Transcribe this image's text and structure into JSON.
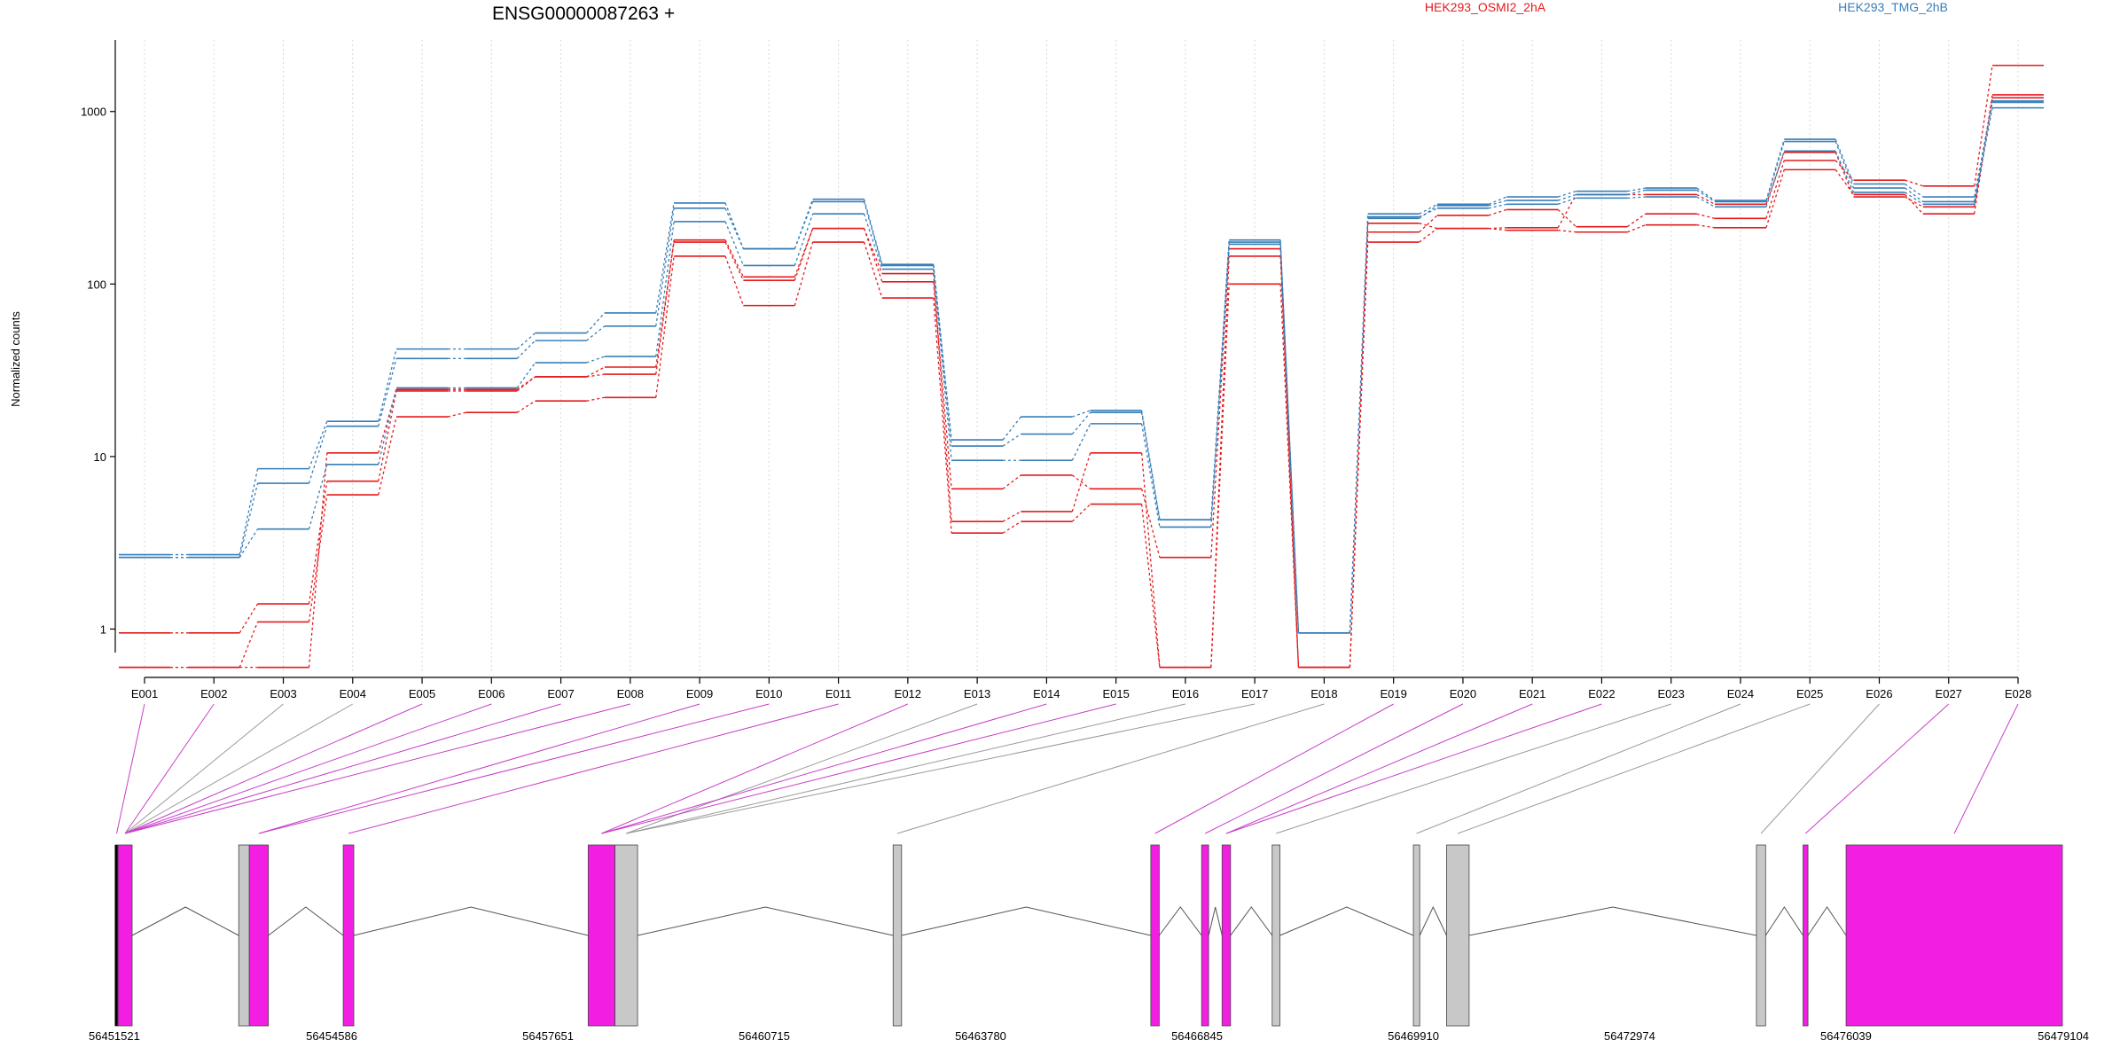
{
  "chart_data": {
    "type": "line",
    "title": "ENSG00000087263 +",
    "ylabel": "Normalized counts",
    "xlabel": "",
    "y_scale": "log",
    "ylim": [
      0.55,
      2600
    ],
    "yticks": [
      1,
      10,
      100,
      1000
    ],
    "ytick_labels": [
      "1",
      "10",
      "100",
      "1000"
    ],
    "grid": "vertical dotted",
    "legend_placement": "top",
    "categories": [
      "E001",
      "E002",
      "E003",
      "E004",
      "E005",
      "E006",
      "E007",
      "E008",
      "E009",
      "E010",
      "E011",
      "E012",
      "E013",
      "E014",
      "E015",
      "E016",
      "E017",
      "E018",
      "E019",
      "E020",
      "E021",
      "E022",
      "E023",
      "E024",
      "E025",
      "E026",
      "E027",
      "E028"
    ],
    "groups": [
      {
        "name": "HEK293_OSMI2_2hA",
        "color": "#E41A1C"
      },
      {
        "name": "HEK293_TMG_2hB",
        "color": "#377EB8"
      }
    ],
    "series": [
      {
        "group": 0,
        "values": [
          0.95,
          0.95,
          1.4,
          7.2,
          24,
          24,
          29,
          30,
          180,
          110,
          210,
          115,
          4.2,
          4.8,
          10.5,
          0.6,
          145,
          0.6,
          200,
          250,
          270,
          215,
          255,
          240,
          520,
          400,
          370,
          1850
        ]
      },
      {
        "group": 0,
        "values": [
          0.6,
          0.6,
          1.1,
          6,
          17,
          18,
          21,
          22,
          145,
          75,
          175,
          83,
          3.6,
          4.2,
          5.3,
          0.6,
          100,
          0.6,
          175,
          210,
          205,
          200,
          220,
          212,
          460,
          330,
          255,
          1250
        ]
      },
      {
        "group": 0,
        "values": [
          0.6,
          0.6,
          0.6,
          10.5,
          24.5,
          24.5,
          29,
          33,
          175,
          105,
          210,
          103,
          6.5,
          7.8,
          6.5,
          2.6,
          160,
          0.6,
          225,
          210,
          212,
          330,
          330,
          290,
          580,
          320,
          280,
          1200
        ]
      },
      {
        "group": 1,
        "values": [
          2.7,
          2.7,
          8.5,
          16,
          42,
          42,
          52,
          68,
          295,
          160,
          310,
          130,
          12.5,
          17,
          18.5,
          4.3,
          180,
          0.95,
          255,
          290,
          320,
          345,
          360,
          305,
          690,
          380,
          320,
          1150
        ]
      },
      {
        "group": 1,
        "values": [
          2.6,
          2.6,
          7,
          15,
          37,
          37,
          47,
          57,
          275,
          160,
          300,
          128,
          11.5,
          13.5,
          18,
          4.3,
          175,
          0.95,
          240,
          285,
          305,
          330,
          350,
          300,
          670,
          360,
          300,
          1130
        ]
      },
      {
        "group": 1,
        "values": [
          2.6,
          2.6,
          3.8,
          9,
          25,
          25,
          35,
          38,
          230,
          128,
          255,
          122,
          9.5,
          9.5,
          15.5,
          3.9,
          170,
          0.95,
          245,
          275,
          290,
          315,
          320,
          280,
          590,
          340,
          290,
          1050
        ]
      }
    ],
    "gene_model": {
      "coordinates": [
        "56451521",
        "56454586",
        "56457651",
        "56460715",
        "56463780",
        "56466845",
        "56469910",
        "56472974",
        "56476039",
        "56479104"
      ],
      "range": [
        56451521,
        56479104
      ],
      "colors": {
        "exon": "#F21FE3",
        "other": "#C8C8C8"
      },
      "exons": [
        {
          "start": 56451521,
          "end": 56451560,
          "type": "exon"
        },
        {
          "start": 56451560,
          "end": 56451760,
          "type": "exon"
        },
        {
          "start": 56453270,
          "end": 56453420,
          "type": "other"
        },
        {
          "start": 56453420,
          "end": 56453690,
          "type": "exon"
        },
        {
          "start": 56454750,
          "end": 56454900,
          "type": "exon"
        },
        {
          "start": 56458220,
          "end": 56458600,
          "type": "exon"
        },
        {
          "start": 56458600,
          "end": 56458920,
          "type": "other"
        },
        {
          "start": 56462540,
          "end": 56462660,
          "type": "other"
        },
        {
          "start": 56466190,
          "end": 56466310,
          "type": "exon"
        },
        {
          "start": 56466910,
          "end": 56467010,
          "type": "exon"
        },
        {
          "start": 56467200,
          "end": 56467320,
          "type": "exon"
        },
        {
          "start": 56467910,
          "end": 56468020,
          "type": "other"
        },
        {
          "start": 56469910,
          "end": 56470000,
          "type": "other"
        },
        {
          "start": 56470380,
          "end": 56470700,
          "type": "other"
        },
        {
          "start": 56474770,
          "end": 56474900,
          "type": "other"
        },
        {
          "start": 56475430,
          "end": 56475500,
          "type": "exon"
        },
        {
          "start": 56476040,
          "end": 56479104,
          "type": "exon"
        }
      ],
      "bin_links": [
        {
          "bin": "E001",
          "exon": 0,
          "type": "exon"
        },
        {
          "bin": "E002",
          "exon": 1,
          "type": "exon"
        },
        {
          "bin": "E003",
          "exon": 1,
          "type": "other"
        },
        {
          "bin": "E004",
          "exon": 1,
          "type": "other"
        },
        {
          "bin": "E005",
          "exon": 1,
          "type": "exon"
        },
        {
          "bin": "E006",
          "exon": 1,
          "type": "exon"
        },
        {
          "bin": "E007",
          "exon": 1,
          "type": "exon"
        },
        {
          "bin": "E008",
          "exon": 1,
          "type": "exon"
        },
        {
          "bin": "E009",
          "exon": 3,
          "type": "exon"
        },
        {
          "bin": "E010",
          "exon": 3,
          "type": "exon"
        },
        {
          "bin": "E011",
          "exon": 4,
          "type": "exon"
        },
        {
          "bin": "E012",
          "exon": 5,
          "type": "exon"
        },
        {
          "bin": "E013",
          "exon": 6,
          "type": "other"
        },
        {
          "bin": "E014",
          "exon": 5,
          "type": "exon"
        },
        {
          "bin": "E015",
          "exon": 5,
          "type": "exon"
        },
        {
          "bin": "E016",
          "exon": 6,
          "type": "other"
        },
        {
          "bin": "E017",
          "exon": 6,
          "type": "other"
        },
        {
          "bin": "E018",
          "exon": 7,
          "type": "other"
        },
        {
          "bin": "E019",
          "exon": 8,
          "type": "exon"
        },
        {
          "bin": "E020",
          "exon": 9,
          "type": "exon"
        },
        {
          "bin": "E021",
          "exon": 10,
          "type": "exon"
        },
        {
          "bin": "E022",
          "exon": 10,
          "type": "exon"
        },
        {
          "bin": "E023",
          "exon": 11,
          "type": "other"
        },
        {
          "bin": "E024",
          "exon": 12,
          "type": "other"
        },
        {
          "bin": "E025",
          "exon": 13,
          "type": "other"
        },
        {
          "bin": "E026",
          "exon": 14,
          "type": "other"
        },
        {
          "bin": "E027",
          "exon": 15,
          "type": "exon"
        },
        {
          "bin": "E028",
          "exon": 16,
          "type": "exon"
        }
      ]
    }
  }
}
